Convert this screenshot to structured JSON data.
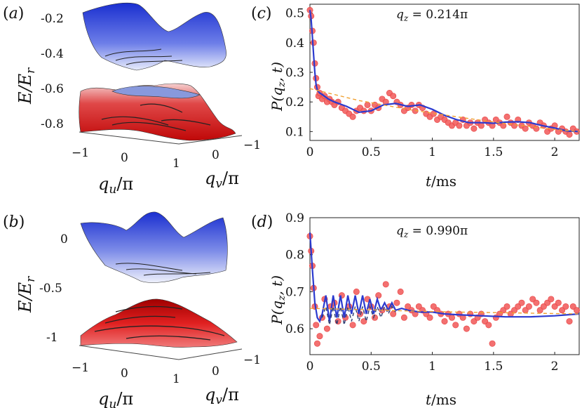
{
  "chart_data": [
    {
      "type": "surface3d",
      "panel": "(a)",
      "zlabel": "E/E_r",
      "xlabel": "q_u/π",
      "ylabel": "q_v/π",
      "z_ticks": [
        "-0.2",
        "-0.4",
        "-0.6",
        "-0.8"
      ],
      "x_ticks": [
        "−1",
        "0",
        "1"
      ],
      "y_ticks": [
        "1",
        "0",
        "−1"
      ],
      "surfaces": [
        {
          "name": "upper band",
          "color": "#2233cc"
        },
        {
          "name": "lower band",
          "color": "#dd1111"
        }
      ]
    },
    {
      "type": "surface3d",
      "panel": "(b)",
      "zlabel": "E/E_r",
      "xlabel": "q_u/π",
      "ylabel": "q_v/π",
      "z_ticks": [
        "0",
        "-0.5",
        "-1"
      ],
      "x_ticks": [
        "−1",
        "0",
        "1"
      ],
      "y_ticks": [
        "1",
        "0",
        "−1"
      ],
      "surfaces": [
        {
          "name": "upper band",
          "color": "#2233cc"
        },
        {
          "name": "lower band",
          "color": "#dd1111"
        }
      ]
    },
    {
      "type": "scatter",
      "panel": "(c)",
      "annotation": "q_z = 0.214π",
      "xlabel": "t/ms",
      "ylabel": "P(q_z, t)",
      "xlim": [
        0,
        2.2
      ],
      "ylim": [
        0.07,
        0.53
      ],
      "x_ticks": [
        0,
        0.5,
        1,
        1.5,
        2
      ],
      "x_tick_labels": [
        "0",
        "0.5",
        "1",
        "1.5",
        "2"
      ],
      "y_ticks": [
        0.1,
        0.2,
        0.3,
        0.4,
        0.5
      ],
      "y_tick_labels": [
        "0.1",
        "0.2",
        "0.3",
        "0.4",
        "0.5"
      ],
      "series": [
        {
          "name": "experiment",
          "style": "points",
          "color": "#f26060",
          "x": [
            0.0,
            0.01,
            0.02,
            0.03,
            0.04,
            0.05,
            0.06,
            0.07,
            0.08,
            0.1,
            0.12,
            0.14,
            0.16,
            0.18,
            0.2,
            0.23,
            0.26,
            0.29,
            0.32,
            0.35,
            0.38,
            0.41,
            0.44,
            0.47,
            0.5,
            0.53,
            0.56,
            0.59,
            0.62,
            0.65,
            0.68,
            0.71,
            0.74,
            0.77,
            0.8,
            0.83,
            0.86,
            0.89,
            0.92,
            0.95,
            0.98,
            1.01,
            1.04,
            1.07,
            1.1,
            1.13,
            1.16,
            1.19,
            1.22,
            1.25,
            1.28,
            1.31,
            1.34,
            1.37,
            1.4,
            1.43,
            1.46,
            1.49,
            1.52,
            1.55,
            1.58,
            1.61,
            1.64,
            1.67,
            1.7,
            1.73,
            1.76,
            1.79,
            1.82,
            1.85,
            1.88,
            1.91,
            1.94,
            1.97,
            2.0,
            2.03,
            2.06,
            2.09,
            2.12,
            2.15,
            2.18
          ],
          "y": [
            0.51,
            0.49,
            0.44,
            0.4,
            0.33,
            0.28,
            0.25,
            0.22,
            0.23,
            0.21,
            0.22,
            0.2,
            0.21,
            0.2,
            0.19,
            0.2,
            0.18,
            0.17,
            0.16,
            0.15,
            0.17,
            0.18,
            0.17,
            0.19,
            0.17,
            0.19,
            0.18,
            0.21,
            0.2,
            0.23,
            0.22,
            0.2,
            0.19,
            0.17,
            0.18,
            0.19,
            0.17,
            0.19,
            0.18,
            0.16,
            0.15,
            0.16,
            0.14,
            0.15,
            0.14,
            0.13,
            0.12,
            0.13,
            0.12,
            0.14,
            0.12,
            0.13,
            0.11,
            0.13,
            0.12,
            0.14,
            0.13,
            0.12,
            0.14,
            0.13,
            0.12,
            0.15,
            0.13,
            0.12,
            0.14,
            0.12,
            0.11,
            0.13,
            0.12,
            0.11,
            0.13,
            0.12,
            0.1,
            0.11,
            0.12,
            0.1,
            0.11,
            0.1,
            0.09,
            0.11,
            0.1
          ]
        },
        {
          "name": "theory",
          "style": "line",
          "color": "#2b3acf",
          "x": [
            0,
            0.01,
            0.02,
            0.03,
            0.04,
            0.05,
            0.06,
            0.07,
            0.08,
            0.1,
            0.15,
            0.2,
            0.3,
            0.4,
            0.5,
            0.6,
            0.7,
            0.8,
            0.9,
            1.0,
            1.1,
            1.2,
            1.3,
            1.4,
            1.5,
            1.6,
            1.7,
            1.8,
            1.9,
            2.0,
            2.1,
            2.2
          ],
          "y": [
            0.51,
            0.48,
            0.42,
            0.36,
            0.3,
            0.26,
            0.24,
            0.235,
            0.23,
            0.225,
            0.21,
            0.2,
            0.185,
            0.165,
            0.17,
            0.19,
            0.195,
            0.185,
            0.19,
            0.175,
            0.155,
            0.14,
            0.13,
            0.13,
            0.128,
            0.132,
            0.133,
            0.13,
            0.12,
            0.112,
            0.102,
            0.1
          ]
        },
        {
          "name": "fit",
          "style": "dashed",
          "color": "#f0a030",
          "x": [
            0,
            0.2,
            0.4,
            0.6,
            0.8,
            1.0,
            1.2,
            1.4,
            1.6,
            1.8,
            2.0,
            2.2
          ],
          "y": [
            0.245,
            0.225,
            0.205,
            0.19,
            0.175,
            0.162,
            0.15,
            0.138,
            0.127,
            0.117,
            0.107,
            0.1
          ]
        }
      ]
    },
    {
      "type": "scatter",
      "panel": "(d)",
      "annotation": "q_z = 0.990π",
      "xlabel": "t/ms",
      "ylabel": "P(q_z, t)",
      "xlim": [
        0,
        2.2
      ],
      "ylim": [
        0.53,
        0.9
      ],
      "x_ticks": [
        0,
        0.5,
        1,
        1.5,
        2
      ],
      "x_tick_labels": [
        "0",
        "0.5",
        "1",
        "1.5",
        "2"
      ],
      "y_ticks": [
        0.6,
        0.7,
        0.8,
        0.9
      ],
      "y_tick_labels": [
        "0.6",
        "0.7",
        "0.8",
        "0.9"
      ],
      "series": [
        {
          "name": "experiment",
          "style": "points",
          "color": "#f26060",
          "x": [
            0.0,
            0.01,
            0.02,
            0.03,
            0.04,
            0.05,
            0.06,
            0.08,
            0.1,
            0.12,
            0.14,
            0.17,
            0.2,
            0.23,
            0.26,
            0.29,
            0.32,
            0.35,
            0.38,
            0.41,
            0.44,
            0.47,
            0.5,
            0.53,
            0.56,
            0.59,
            0.62,
            0.65,
            0.68,
            0.71,
            0.74,
            0.77,
            0.8,
            0.83,
            0.86,
            0.89,
            0.92,
            0.95,
            0.98,
            1.01,
            1.04,
            1.07,
            1.1,
            1.13,
            1.16,
            1.19,
            1.22,
            1.25,
            1.28,
            1.31,
            1.34,
            1.37,
            1.4,
            1.43,
            1.46,
            1.49,
            1.52,
            1.55,
            1.58,
            1.61,
            1.64,
            1.67,
            1.7,
            1.73,
            1.76,
            1.79,
            1.82,
            1.85,
            1.88,
            1.91,
            1.94,
            1.97,
            2.0,
            2.03,
            2.06,
            2.09,
            2.12,
            2.15,
            2.18
          ],
          "y": [
            0.85,
            0.81,
            0.77,
            0.71,
            0.66,
            0.61,
            0.56,
            0.58,
            0.63,
            0.68,
            0.6,
            0.66,
            0.67,
            0.62,
            0.69,
            0.63,
            0.66,
            0.61,
            0.7,
            0.64,
            0.62,
            0.68,
            0.66,
            0.63,
            0.69,
            0.65,
            0.72,
            0.66,
            0.64,
            0.67,
            0.7,
            0.63,
            0.66,
            0.65,
            0.64,
            0.66,
            0.65,
            0.64,
            0.63,
            0.66,
            0.65,
            0.64,
            0.62,
            0.64,
            0.63,
            0.61,
            0.64,
            0.63,
            0.6,
            0.64,
            0.62,
            0.63,
            0.64,
            0.62,
            0.61,
            0.56,
            0.63,
            0.64,
            0.65,
            0.66,
            0.64,
            0.65,
            0.66,
            0.67,
            0.65,
            0.66,
            0.68,
            0.67,
            0.65,
            0.66,
            0.67,
            0.68,
            0.66,
            0.67,
            0.65,
            0.66,
            0.62,
            0.66,
            0.65
          ]
        },
        {
          "name": "theory",
          "style": "line",
          "color": "#2b3acf",
          "x": [
            0,
            0.02,
            0.04,
            0.06,
            0.08,
            0.1,
            0.13,
            0.16,
            0.19,
            0.22,
            0.25,
            0.28,
            0.31,
            0.34,
            0.37,
            0.4,
            0.43,
            0.46,
            0.49,
            0.52,
            0.55,
            0.58,
            0.61,
            0.64,
            0.67,
            0.7,
            0.75,
            0.8,
            0.9,
            1.0,
            1.1,
            1.2,
            1.4,
            1.6,
            1.8,
            2.0,
            2.2
          ],
          "y": [
            0.86,
            0.76,
            0.67,
            0.63,
            0.62,
            0.64,
            0.69,
            0.62,
            0.69,
            0.63,
            0.69,
            0.63,
            0.69,
            0.64,
            0.69,
            0.64,
            0.69,
            0.64,
            0.68,
            0.64,
            0.68,
            0.65,
            0.67,
            0.65,
            0.67,
            0.65,
            0.655,
            0.65,
            0.645,
            0.645,
            0.64,
            0.638,
            0.635,
            0.632,
            0.632,
            0.635,
            0.64
          ]
        },
        {
          "name": "theory2",
          "style": "dashed",
          "color": "#2b3a70",
          "x": [
            0.1,
            0.13,
            0.16,
            0.19,
            0.22,
            0.25,
            0.28,
            0.31,
            0.34,
            0.37,
            0.4,
            0.43,
            0.46,
            0.49,
            0.52,
            0.55,
            0.58,
            0.61,
            0.64,
            0.67,
            0.7
          ],
          "y": [
            0.63,
            0.66,
            0.61,
            0.66,
            0.61,
            0.66,
            0.61,
            0.66,
            0.62,
            0.66,
            0.62,
            0.66,
            0.62,
            0.66,
            0.63,
            0.66,
            0.63,
            0.66,
            0.64,
            0.66,
            0.645
          ]
        },
        {
          "name": "fit",
          "style": "dashed",
          "color": "#f0a030",
          "x": [
            0,
            0.4,
            0.8,
            1.2,
            1.6,
            2.0,
            2.2
          ],
          "y": [
            0.655,
            0.652,
            0.648,
            0.645,
            0.643,
            0.641,
            0.64
          ]
        }
      ]
    }
  ]
}
